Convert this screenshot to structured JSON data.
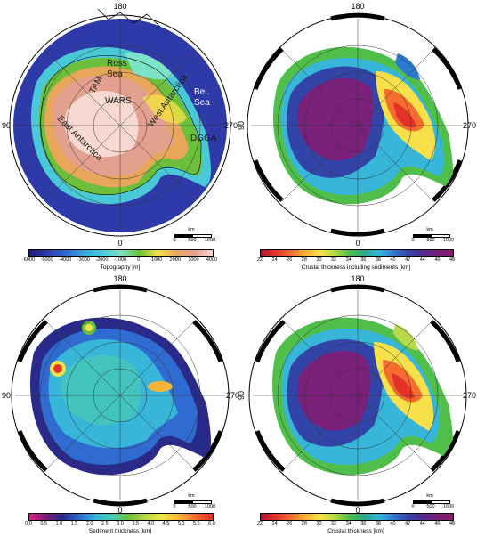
{
  "panels": [
    {
      "id": "topography",
      "lon_labels": {
        "top": "180",
        "bottom": "0",
        "left": "90",
        "right": "270"
      },
      "colorbar": {
        "title": "Topography [m]",
        "ticks": [
          "-6000",
          "-5000",
          "-4000",
          "-3000",
          "-2000",
          "-1000",
          "0",
          "1000",
          "2000",
          "3000",
          "4000"
        ],
        "colors": [
          "#1f1f7a",
          "#2d3aa8",
          "#2f6bd1",
          "#3aa7e0",
          "#49c9d8",
          "#7de3c7",
          "#6cbf3a",
          "#f3e24a",
          "#e8a65b",
          "#e3a08e",
          "#f7d9d2"
        ]
      },
      "regions": [
        "Ross Sea",
        "TAM",
        "WARS",
        "West Antarctica",
        "East Antarctica",
        "Bel. Sea",
        "DGGA"
      ]
    },
    {
      "id": "crust-with-sediments",
      "lon_labels": {
        "top": "180",
        "bottom": "0",
        "left": "90",
        "right": "270"
      },
      "colorbar": {
        "title": "Crustal thickness including sediments [km]",
        "ticks": [
          "22",
          "24",
          "26",
          "28",
          "30",
          "32",
          "34",
          "36",
          "38",
          "40",
          "42",
          "44",
          "46",
          "48"
        ],
        "colors": [
          "#b3132b",
          "#e3322a",
          "#f46d2e",
          "#fdae3a",
          "#f7e04a",
          "#b8d94a",
          "#4fbf4a",
          "#2ca68c",
          "#37b6d9",
          "#2f78d1",
          "#3344a8",
          "#5a2b8c",
          "#7a1f7a",
          "#8a1a6b"
        ]
      }
    },
    {
      "id": "sediment",
      "lon_labels": {
        "top": "180",
        "bottom": "0",
        "left": "90",
        "right": "270"
      },
      "colorbar": {
        "title": "Sediment thickness [km]",
        "ticks": [
          "0.0",
          "0.5",
          "1.0",
          "1.5",
          "2.0",
          "2.5",
          "3.0",
          "3.5",
          "4.0",
          "4.5",
          "5.0",
          "5.5",
          "6.0"
        ],
        "colors": [
          "#e0208a",
          "#7a1f7a",
          "#2a2a8a",
          "#2f6bd1",
          "#37b6d9",
          "#49c9b0",
          "#6cbf3a",
          "#b8d94a",
          "#f3e24a",
          "#f7b43a",
          "#f46d2e",
          "#e3322a"
        ]
      }
    },
    {
      "id": "crust",
      "lon_labels": {
        "top": "180",
        "bottom": "0",
        "left": "90",
        "right": "270"
      },
      "colorbar": {
        "title": "Crustal thickness [km]",
        "ticks": [
          "22",
          "24",
          "26",
          "28",
          "30",
          "32",
          "34",
          "36",
          "38",
          "40",
          "42",
          "44",
          "46",
          "48"
        ],
        "colors": [
          "#b3132b",
          "#e3322a",
          "#f46d2e",
          "#fdae3a",
          "#f7e04a",
          "#b8d94a",
          "#4fbf4a",
          "#2ca68c",
          "#37b6d9",
          "#2f78d1",
          "#3344a8",
          "#5a2b8c",
          "#7a1f7a",
          "#8a1a6b"
        ]
      }
    }
  ],
  "scalebar": {
    "unit": "km",
    "ticks": [
      "0",
      "500",
      "1000"
    ]
  }
}
